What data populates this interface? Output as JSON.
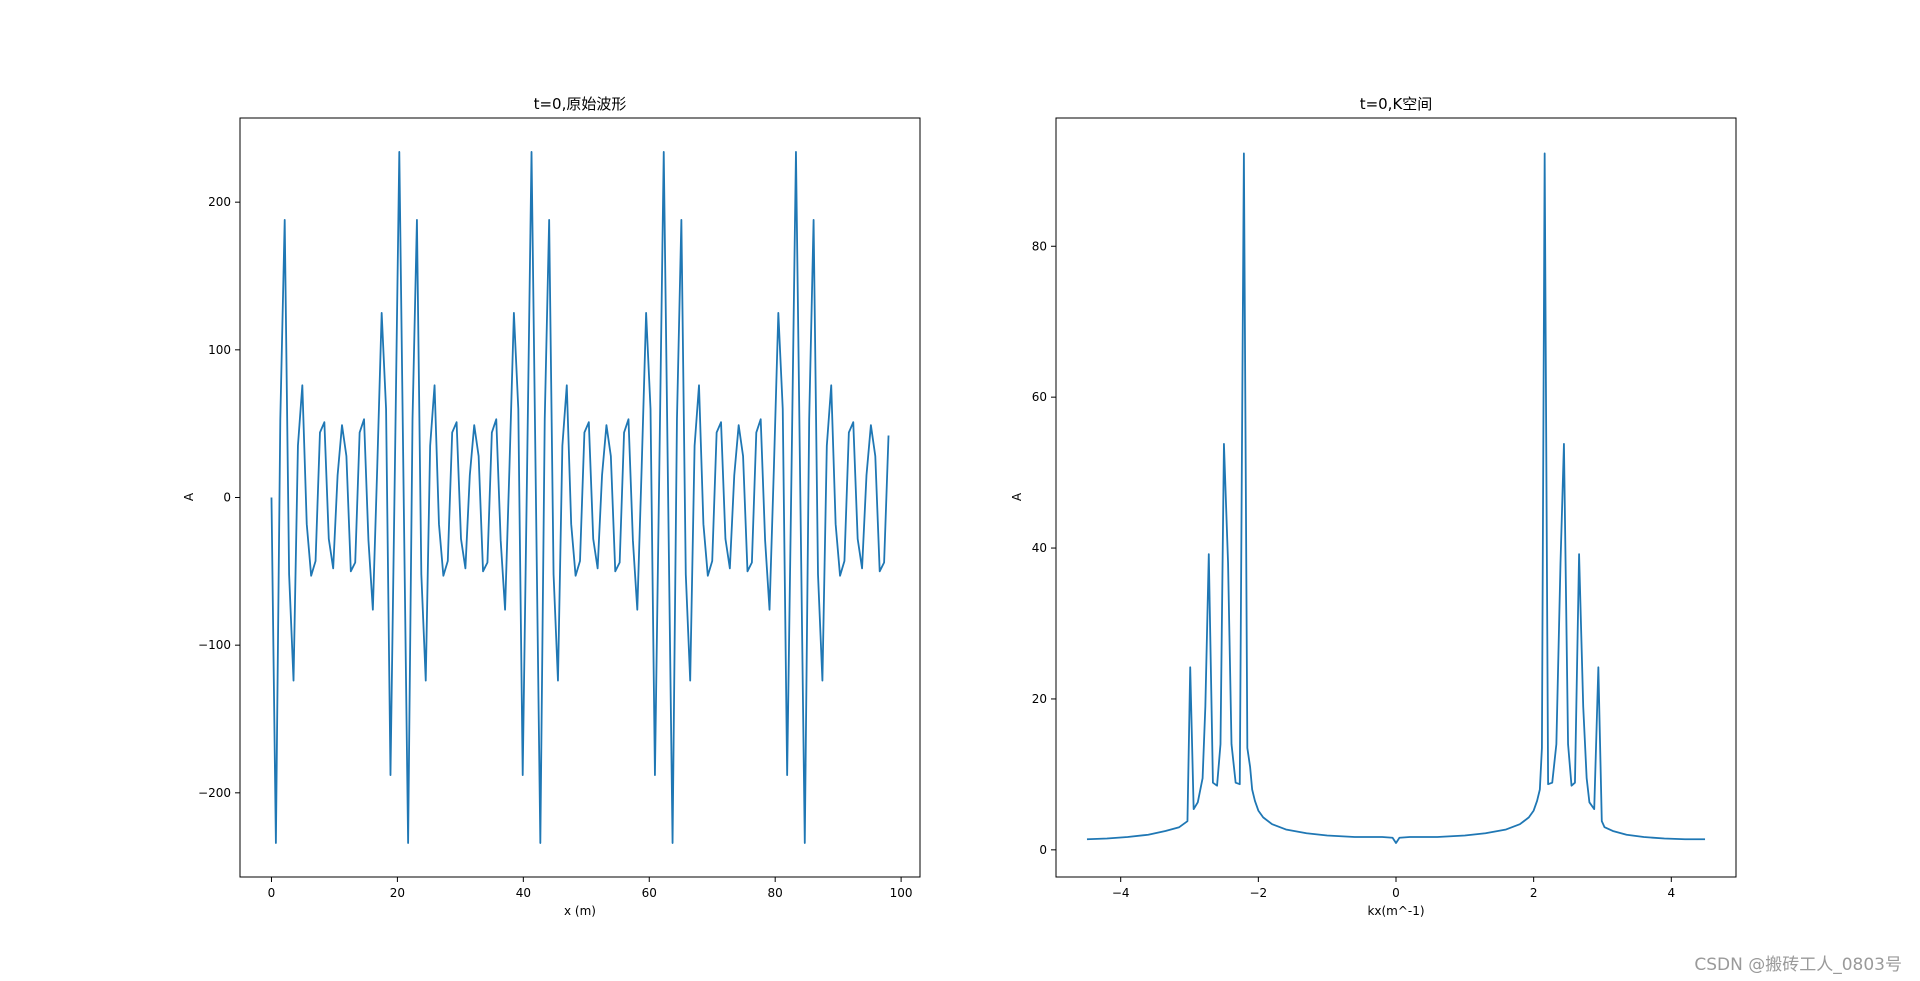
{
  "chart_data": [
    {
      "type": "line",
      "title": "t=0,原始波形",
      "xlabel": "x (m)",
      "ylabel": "A",
      "xlim": [
        -5,
        103
      ],
      "ylim": [
        -257,
        257
      ],
      "xticks": [
        0,
        20,
        40,
        60,
        80,
        100
      ],
      "xtick_labels": [
        "0",
        "20",
        "40",
        "60",
        "80",
        "100"
      ],
      "yticks": [
        200,
        100,
        0,
        -100,
        -200
      ],
      "ytick_labels": [
        "200",
        "100",
        "0",
        "−100",
        "−200"
      ],
      "color": "#1f77b4",
      "grid": false,
      "series": [
        {
          "x": [
            0.0,
            0.7,
            1.4,
            2.1,
            2.8,
            3.5,
            4.2,
            4.9,
            5.6,
            6.3,
            7.0,
            7.7,
            8.4,
            9.1,
            9.8,
            10.5,
            11.2,
            11.9,
            12.6,
            13.3,
            14.0,
            14.7,
            15.4,
            16.1,
            16.8,
            17.5,
            18.2,
            18.9,
            19.6,
            20.3,
            21.0,
            21.7,
            22.4,
            23.1,
            23.8,
            24.5,
            25.2,
            25.9,
            26.6,
            27.3,
            28.0,
            28.7,
            29.4,
            30.1,
            30.8,
            31.5,
            32.2,
            32.9,
            33.6,
            34.3,
            35.0,
            35.7,
            36.4,
            37.1,
            37.8,
            38.5,
            39.2,
            39.9,
            40.6,
            41.3,
            42.0,
            42.7,
            43.4,
            44.1,
            44.8,
            45.5,
            46.2,
            46.9,
            47.6,
            48.3,
            49.0,
            49.7,
            50.4,
            51.1,
            51.8,
            52.5,
            53.2,
            53.9,
            54.6,
            55.3,
            56.0,
            56.7,
            57.4,
            58.1,
            58.8,
            59.5,
            60.2,
            60.9,
            61.6,
            62.3,
            63.0,
            63.7,
            64.4,
            65.1,
            65.8,
            66.5,
            67.2,
            67.9,
            68.6,
            69.3,
            70.0,
            70.7,
            71.4,
            72.1,
            72.8,
            73.5,
            74.2,
            74.9,
            75.6,
            76.3,
            77.0,
            77.7,
            78.4,
            79.1,
            79.8,
            80.5,
            81.2,
            81.9,
            82.6,
            83.3,
            84.0,
            84.7,
            85.4,
            86.1,
            86.8,
            87.5,
            88.2,
            88.9,
            89.6,
            90.3,
            91.0,
            91.7,
            92.4,
            93.1,
            93.8,
            94.5,
            95.2,
            95.9,
            96.6,
            97.3,
            98.0
          ],
          "y": [
            0,
            -234,
            53,
            188,
            -52,
            -124,
            35,
            76,
            -18,
            -53,
            -43,
            44,
            51,
            -28,
            -48,
            15,
            49,
            28,
            -50,
            -44,
            44,
            53,
            -29,
            -76,
            21,
            125,
            60,
            -188,
            20,
            234,
            0,
            -234,
            53,
            188,
            -52,
            -124,
            35,
            76,
            -18,
            -53,
            -43,
            44,
            51,
            -28,
            -48,
            15,
            49,
            28,
            -50,
            -44,
            44,
            53,
            -29,
            -76,
            21,
            125,
            60,
            -188,
            20,
            234,
            0,
            -234,
            53,
            188,
            -52,
            -124,
            35,
            76,
            -18,
            -53,
            -43,
            44,
            51,
            -28,
            -48,
            15,
            49,
            28,
            -50,
            -44,
            44,
            53,
            -29,
            -76,
            21,
            125,
            60,
            -188,
            20,
            234,
            0,
            -234,
            53,
            188,
            -52,
            -124,
            35,
            76,
            -18,
            -53,
            -43,
            44,
            51,
            -28,
            -48,
            15,
            49,
            28,
            -50,
            -44,
            44,
            53,
            -29,
            -76,
            21,
            125,
            60,
            -188,
            20,
            234,
            0,
            -234,
            53,
            188,
            -52,
            -124,
            35,
            76,
            -18,
            -53,
            -43,
            44,
            51,
            -28,
            -48,
            15,
            49,
            28,
            -50,
            -44,
            42
          ]
        }
      ]
    },
    {
      "type": "line",
      "title": "t=0,K空间",
      "xlabel": "kx(m^-1)",
      "ylabel": "A",
      "xlim": [
        -4.94,
        4.94
      ],
      "ylim": [
        -3.6,
        97.0
      ],
      "xticks": [
        -4,
        -2,
        0,
        2,
        4
      ],
      "xtick_labels": [
        "−4",
        "−2",
        "0",
        "2",
        "4"
      ],
      "yticks": [
        80,
        60,
        40,
        20,
        0
      ],
      "ytick_labels": [
        "80",
        "60",
        "40",
        "20",
        "0"
      ],
      "color": "#1f77b4",
      "grid": false,
      "series": [
        {
          "x": [
            -4.49,
            -4.2,
            -3.9,
            -3.6,
            -3.35,
            -3.15,
            -3.03,
            -2.99,
            -2.94,
            -2.88,
            -2.81,
            -2.77,
            -2.72,
            -2.66,
            -2.6,
            -2.55,
            -2.5,
            -2.44,
            -2.39,
            -2.33,
            -2.27,
            -2.21,
            -2.16,
            -2.12,
            -2.09,
            -2.05,
            -2.0,
            -1.93,
            -1.8,
            -1.6,
            -1.3,
            -1.0,
            -0.6,
            -0.2,
            -0.05,
            0.0,
            0.05,
            0.2,
            0.6,
            1.0,
            1.3,
            1.6,
            1.8,
            1.93,
            2.0,
            2.05,
            2.09,
            2.12,
            2.16,
            2.21,
            2.27,
            2.33,
            2.39,
            2.44,
            2.5,
            2.55,
            2.6,
            2.66,
            2.72,
            2.77,
            2.81,
            2.88,
            2.94,
            2.99,
            3.03,
            3.15,
            3.35,
            3.6,
            3.9,
            4.2,
            4.49
          ],
          "y": [
            1.4,
            1.5,
            1.7,
            2.0,
            2.5,
            3.0,
            3.8,
            24.2,
            5.4,
            6.3,
            9.5,
            19.0,
            39.2,
            8.9,
            8.5,
            14.0,
            53.8,
            38.0,
            14.0,
            8.9,
            8.7,
            92.3,
            13.5,
            11.0,
            8.0,
            6.5,
            5.2,
            4.3,
            3.4,
            2.7,
            2.2,
            1.9,
            1.7,
            1.7,
            1.6,
            0.9,
            1.6,
            1.7,
            1.7,
            1.9,
            2.2,
            2.7,
            3.4,
            4.3,
            5.2,
            6.5,
            8.0,
            13.5,
            92.3,
            8.7,
            8.9,
            14.0,
            38.0,
            53.8,
            14.0,
            8.5,
            8.9,
            39.2,
            19.0,
            9.5,
            6.3,
            5.4,
            24.2,
            3.8,
            3.0,
            2.5,
            2.0,
            1.7,
            1.5,
            1.4,
            1.4
          ]
        }
      ]
    }
  ],
  "watermark": "CSDN @搬砖工人_0803号"
}
